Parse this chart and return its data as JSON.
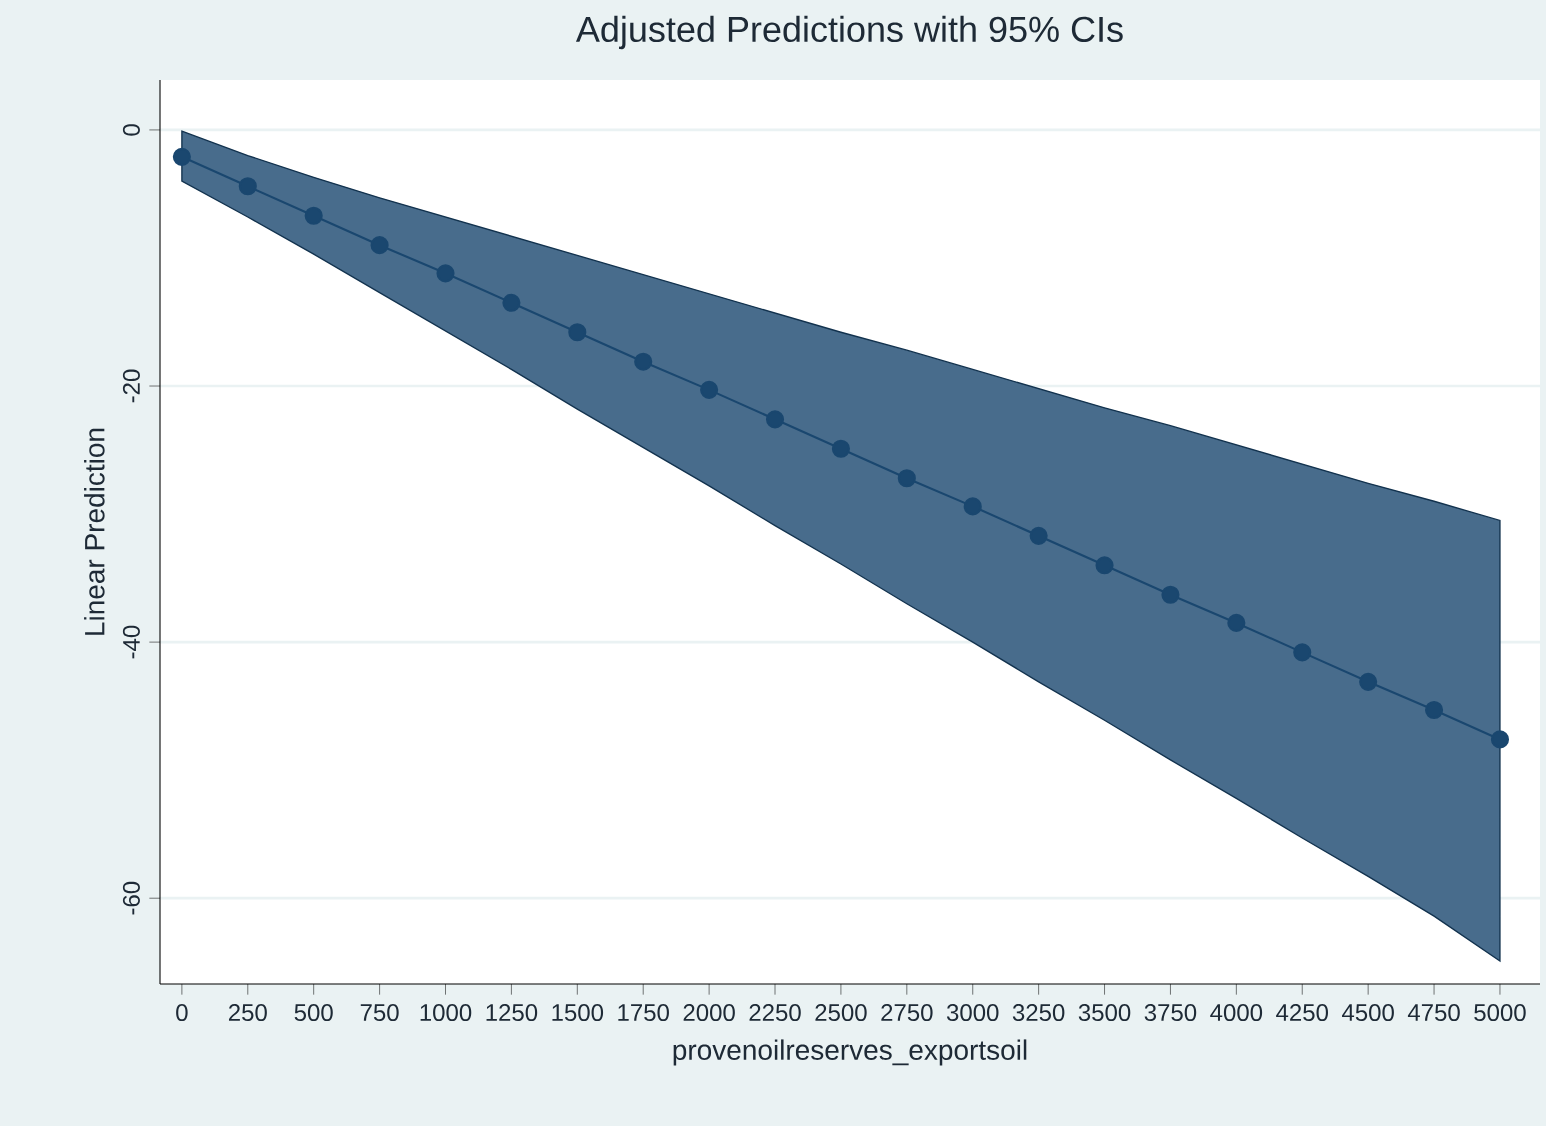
{
  "chart_data": {
    "type": "line",
    "title": "Adjusted Predictions with 95% CIs",
    "xlabel": "provenoilreserves_exportsoil",
    "ylabel": "Linear Prediction",
    "x": [
      0,
      250,
      500,
      750,
      1000,
      1250,
      1500,
      1750,
      2000,
      2250,
      2500,
      2750,
      3000,
      3250,
      3500,
      3750,
      4000,
      4250,
      4500,
      4750,
      5000
    ],
    "series": [
      {
        "color": "#1a476f",
        "values": [
          -2.1,
          -4.4,
          -6.7,
          -9.0,
          -11.2,
          -13.5,
          -15.8,
          -18.1,
          -20.3,
          -22.6,
          -24.9,
          -27.2,
          -29.4,
          -31.7,
          -34.0,
          -36.3,
          -38.5,
          -40.8,
          -43.1,
          -45.3,
          -47.6
        ],
        "lower": [
          -4.0,
          -6.8,
          -9.7,
          -12.7,
          -15.7,
          -18.7,
          -21.8,
          -24.8,
          -27.8,
          -30.9,
          -33.9,
          -37.0,
          -40.0,
          -43.1,
          -46.1,
          -49.2,
          -52.2,
          -55.3,
          -58.3,
          -61.4,
          -64.9
        ],
        "upper": [
          -0.1,
          -2.0,
          -3.7,
          -5.3,
          -6.8,
          -8.3,
          -9.8,
          -11.3,
          -12.8,
          -14.3,
          -15.8,
          -17.2,
          -18.7,
          -20.2,
          -21.7,
          -23.1,
          -24.6,
          -26.1,
          -27.6,
          -29.0,
          -30.5
        ]
      }
    ],
    "xlim": [
      -83,
      5152
    ],
    "ylim": [
      -66.7,
      3.9
    ],
    "xticks": [
      0,
      250,
      500,
      750,
      1000,
      1250,
      1500,
      1750,
      2000,
      2250,
      2500,
      2750,
      3000,
      3250,
      3500,
      3750,
      4000,
      4250,
      4500,
      4750,
      5000
    ],
    "yticks": [
      0,
      -20,
      -40,
      -60
    ],
    "grid": "y",
    "marker": "circle",
    "line_style": "solid"
  }
}
